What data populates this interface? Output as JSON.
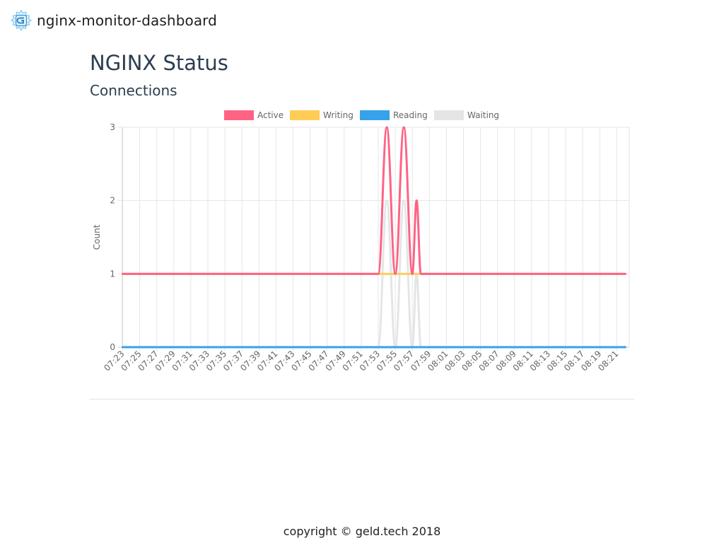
{
  "header": {
    "app_title": "nginx-monitor-dashboard",
    "logo_icon": "gear-g-logo-icon"
  },
  "page": {
    "title": "NGINX Status",
    "section_title": "Connections"
  },
  "footer": {
    "copyright": "copyright © geld.tech 2018"
  },
  "chart_data": {
    "type": "line",
    "title": "",
    "xlabel": "",
    "ylabel": "Count",
    "ylim": [
      0,
      3
    ],
    "yticks": [
      0,
      1,
      2,
      3
    ],
    "grid": true,
    "legend_position": "top",
    "x": [
      "07:23",
      "07:25",
      "07:27",
      "07:29",
      "07:31",
      "07:33",
      "07:35",
      "07:37",
      "07:39",
      "07:41",
      "07:43",
      "07:45",
      "07:47",
      "07:49",
      "07:51",
      "07:53",
      "07:55",
      "07:57",
      "07:59",
      "08:01",
      "08:03",
      "08:05",
      "08:07",
      "08:09",
      "08:11",
      "08:13",
      "08:15",
      "08:17",
      "08:19",
      "08:21"
    ],
    "series": [
      {
        "name": "Active",
        "color": "#ff6384",
        "points": [
          {
            "x": "07:23",
            "y": 1
          },
          {
            "x": "07:53",
            "y": 1
          },
          {
            "x": "07:54",
            "y": 3
          },
          {
            "x": "07:55",
            "y": 1
          },
          {
            "x": "07:56",
            "y": 3
          },
          {
            "x": "07:57",
            "y": 1
          },
          {
            "x": "07:57.5",
            "y": 2
          },
          {
            "x": "07:58",
            "y": 1
          },
          {
            "x": "08:22",
            "y": 1
          }
        ]
      },
      {
        "name": "Writing",
        "color": "#ffcd56",
        "points": [
          {
            "x": "07:23",
            "y": 1
          },
          {
            "x": "08:22",
            "y": 1
          }
        ]
      },
      {
        "name": "Reading",
        "color": "#36a2eb",
        "points": [
          {
            "x": "07:23",
            "y": 0
          },
          {
            "x": "08:22",
            "y": 0
          }
        ]
      },
      {
        "name": "Waiting",
        "color": "#e4e5e7",
        "points": [
          {
            "x": "07:23",
            "y": 0
          },
          {
            "x": "07:53",
            "y": 0
          },
          {
            "x": "07:54",
            "y": 2
          },
          {
            "x": "07:55",
            "y": 0
          },
          {
            "x": "07:56",
            "y": 2
          },
          {
            "x": "07:57",
            "y": 0
          },
          {
            "x": "07:57.5",
            "y": 1
          },
          {
            "x": "07:58",
            "y": 0
          },
          {
            "x": "08:22",
            "y": 0
          }
        ]
      }
    ]
  }
}
